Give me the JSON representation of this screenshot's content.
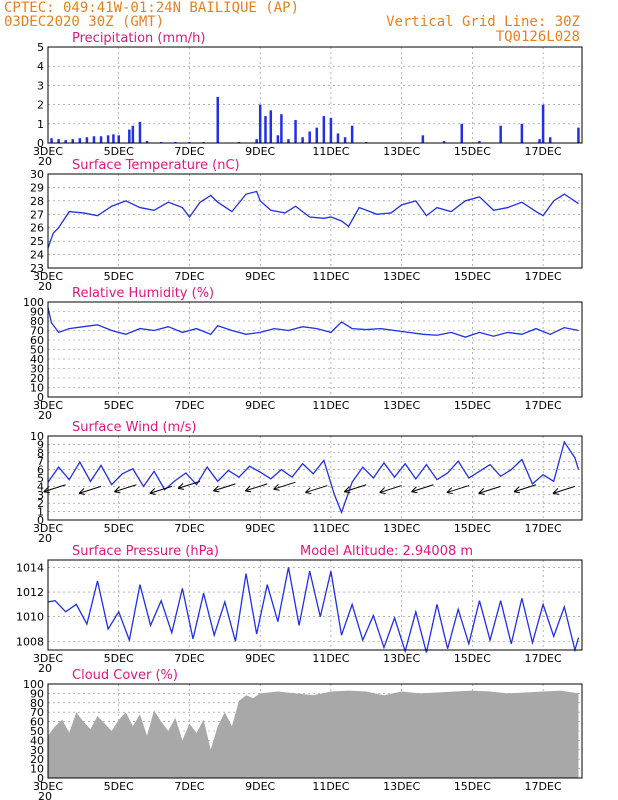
{
  "header": {
    "source": "CPTEC:",
    "coords": "049:41W-01:24N",
    "station": "BAILIQUE (AP)",
    "run": "03DEC2020 30Z (GMT)",
    "grid_note": "Vertical Grid Line: 30Z",
    "code": "TQ0126L028",
    "model_altitude": "Model Altitude: 2.94008 m"
  },
  "colors": {
    "header": "#e8801e",
    "title": "#e0187c",
    "series": "#2030e8",
    "cloud": "#a8a8a8"
  },
  "x_ticks": [
    "3DEC",
    "5DEC",
    "7DEC",
    "9DEC",
    "11DEC",
    "13DEC",
    "15DEC",
    "17DEC"
  ],
  "x_tick_sub": "20",
  "chart_data": [
    {
      "type": "bar",
      "title": "Precipitation (mm/h)",
      "ylim": [
        0,
        5
      ],
      "yticks": [
        0,
        1,
        2,
        3,
        4,
        5
      ],
      "x_range_days": [
        3,
        18.1
      ],
      "bars": [
        [
          3.1,
          0.25
        ],
        [
          3.3,
          0.2
        ],
        [
          3.5,
          0.15
        ],
        [
          3.7,
          0.2
        ],
        [
          3.9,
          0.25
        ],
        [
          4.1,
          0.3
        ],
        [
          4.3,
          0.35
        ],
        [
          4.5,
          0.35
        ],
        [
          4.7,
          0.4
        ],
        [
          4.85,
          0.45
        ],
        [
          5.0,
          0.4
        ],
        [
          5.3,
          0.7
        ],
        [
          5.4,
          0.9
        ],
        [
          5.6,
          1.1
        ],
        [
          5.8,
          0.1
        ],
        [
          6.2,
          0.05
        ],
        [
          6.6,
          0.05
        ],
        [
          7.0,
          0.05
        ],
        [
          7.4,
          0.05
        ],
        [
          7.8,
          2.4
        ],
        [
          8.4,
          0.05
        ],
        [
          8.9,
          0.2
        ],
        [
          9.0,
          2.0
        ],
        [
          9.15,
          1.4
        ],
        [
          9.3,
          1.7
        ],
        [
          9.5,
          0.4
        ],
        [
          9.6,
          1.5
        ],
        [
          9.8,
          0.2
        ],
        [
          10.0,
          1.2
        ],
        [
          10.2,
          0.3
        ],
        [
          10.4,
          0.6
        ],
        [
          10.6,
          0.8
        ],
        [
          10.8,
          1.4
        ],
        [
          11.0,
          1.3
        ],
        [
          11.2,
          0.5
        ],
        [
          11.4,
          0.3
        ],
        [
          11.6,
          0.9
        ],
        [
          12.0,
          0.05
        ],
        [
          13.6,
          0.4
        ],
        [
          14.2,
          0.1
        ],
        [
          14.7,
          1.0
        ],
        [
          15.2,
          0.1
        ],
        [
          15.8,
          0.9
        ],
        [
          16.4,
          1.0
        ],
        [
          16.9,
          0.2
        ],
        [
          17.0,
          2.0
        ],
        [
          17.2,
          0.3
        ],
        [
          18.0,
          0.8
        ]
      ]
    },
    {
      "type": "line",
      "title": "Surface Temperature (nC)",
      "ylim": [
        23,
        30
      ],
      "yticks": [
        23,
        24,
        25,
        26,
        27,
        28,
        29,
        30
      ],
      "x": [
        3,
        3.15,
        3.3,
        3.45,
        3.6,
        4.0,
        4.4,
        4.8,
        5.2,
        5.6,
        6.0,
        6.4,
        6.8,
        7.0,
        7.3,
        7.6,
        7.8,
        8.2,
        8.6,
        8.9,
        9.0,
        9.3,
        9.7,
        10.0,
        10.4,
        10.8,
        11.0,
        11.3,
        11.5,
        11.8,
        12.3,
        12.7,
        13.0,
        13.4,
        13.7,
        14.0,
        14.4,
        14.8,
        15.2,
        15.6,
        16.0,
        16.4,
        16.8,
        17.0,
        17.3,
        17.6,
        18.0
      ],
      "y": [
        24.5,
        25.6,
        26.0,
        26.6,
        27.2,
        27.1,
        26.9,
        27.6,
        28.0,
        27.5,
        27.3,
        27.9,
        27.5,
        26.8,
        27.9,
        28.4,
        27.9,
        27.2,
        28.5,
        28.7,
        28.0,
        27.3,
        27.1,
        27.6,
        26.8,
        26.7,
        26.8,
        26.5,
        26.1,
        27.5,
        27.0,
        27.1,
        27.7,
        28.0,
        26.9,
        27.5,
        27.2,
        28.0,
        28.3,
        27.3,
        27.5,
        27.9,
        27.2,
        26.9,
        28.0,
        28.5,
        27.8
      ]
    },
    {
      "type": "line",
      "title": "Relative Humidity (%)",
      "ylim": [
        0,
        100
      ],
      "yticks": [
        0,
        10,
        20,
        30,
        40,
        50,
        60,
        70,
        80,
        90,
        100
      ],
      "x": [
        3,
        3.1,
        3.3,
        3.6,
        4.0,
        4.4,
        4.8,
        5.2,
        5.6,
        6.0,
        6.4,
        6.8,
        7.2,
        7.6,
        7.8,
        8.2,
        8.6,
        9.0,
        9.4,
        9.8,
        10.2,
        10.6,
        11.0,
        11.3,
        11.6,
        12.0,
        12.4,
        12.8,
        13.2,
        13.6,
        14.0,
        14.4,
        14.8,
        15.2,
        15.6,
        16.0,
        16.4,
        16.8,
        17.2,
        17.6,
        18.0
      ],
      "y": [
        94,
        78,
        68,
        72,
        74,
        76,
        70,
        66,
        72,
        70,
        74,
        68,
        72,
        66,
        75,
        70,
        66,
        68,
        72,
        70,
        74,
        72,
        68,
        79,
        72,
        71,
        72,
        70,
        68,
        66,
        65,
        68,
        63,
        68,
        64,
        68,
        66,
        72,
        66,
        73,
        70
      ]
    },
    {
      "type": "line",
      "title": "Surface Wind (m/s)",
      "ylim": [
        0,
        10
      ],
      "yticks": [
        0,
        1,
        2,
        3,
        4,
        5,
        6,
        7,
        8,
        9,
        10
      ],
      "x": [
        3,
        3.3,
        3.6,
        3.9,
        4.2,
        4.5,
        4.8,
        5.1,
        5.4,
        5.7,
        6.0,
        6.3,
        6.6,
        6.9,
        7.2,
        7.5,
        7.8,
        8.1,
        8.4,
        8.7,
        9.0,
        9.3,
        9.6,
        9.9,
        10.2,
        10.5,
        10.8,
        11.1,
        11.3,
        11.6,
        11.9,
        12.2,
        12.5,
        12.8,
        13.1,
        13.4,
        13.7,
        14.0,
        14.3,
        14.6,
        14.9,
        15.2,
        15.5,
        15.8,
        16.1,
        16.4,
        16.7,
        17.0,
        17.3,
        17.6,
        17.9,
        18.0
      ],
      "y": [
        4.5,
        6.3,
        4.8,
        6.9,
        4.6,
        6.5,
        4.2,
        5.5,
        6.1,
        4.0,
        5.8,
        3.6,
        4.7,
        5.6,
        4.2,
        6.3,
        4.6,
        5.9,
        5.1,
        6.4,
        5.7,
        4.9,
        6.0,
        5.1,
        6.7,
        5.5,
        7.1,
        3.0,
        0.9,
        4.5,
        6.3,
        5.0,
        6.8,
        5.1,
        6.7,
        4.9,
        6.6,
        4.8,
        5.6,
        7.0,
        5.0,
        5.8,
        6.6,
        5.2,
        6.0,
        7.2,
        4.3,
        5.4,
        4.6,
        9.3,
        7.4,
        6.0
      ],
      "arrows": [
        [
          3.5,
          4.2
        ],
        [
          4.5,
          4.0
        ],
        [
          5.5,
          4.2
        ],
        [
          6.5,
          4.0
        ],
        [
          7.3,
          4.6
        ],
        [
          8.3,
          4.3
        ],
        [
          9.2,
          4.3
        ],
        [
          10.0,
          4.5
        ],
        [
          10.9,
          4.1
        ],
        [
          12.0,
          4.2
        ],
        [
          13.0,
          4.1
        ],
        [
          13.9,
          4.2
        ],
        [
          14.9,
          4.1
        ],
        [
          15.8,
          4.0
        ],
        [
          16.8,
          4.2
        ],
        [
          17.9,
          4.0
        ]
      ]
    },
    {
      "type": "line",
      "title": "Surface Pressure (hPa)",
      "ylim": [
        1007.3,
        1014.6
      ],
      "yticks": [
        1008,
        1010,
        1012,
        1014
      ],
      "x": [
        3,
        3.2,
        3.5,
        3.8,
        4.1,
        4.4,
        4.7,
        5.0,
        5.3,
        5.6,
        5.9,
        6.2,
        6.5,
        6.8,
        7.1,
        7.4,
        7.7,
        8.0,
        8.3,
        8.6,
        8.9,
        9.2,
        9.5,
        9.8,
        10.1,
        10.4,
        10.7,
        11.0,
        11.3,
        11.6,
        11.9,
        12.2,
        12.5,
        12.8,
        13.1,
        13.4,
        13.7,
        14.0,
        14.3,
        14.6,
        14.9,
        15.2,
        15.5,
        15.8,
        16.1,
        16.4,
        16.7,
        17.0,
        17.3,
        17.6,
        17.9,
        18.0
      ],
      "y": [
        1011.2,
        1011.3,
        1010.4,
        1011.0,
        1009.4,
        1012.9,
        1009.0,
        1010.4,
        1008.1,
        1012.6,
        1009.3,
        1011.3,
        1008.7,
        1012.3,
        1008.2,
        1011.9,
        1008.5,
        1011.2,
        1008.0,
        1013.5,
        1008.6,
        1012.6,
        1009.6,
        1014.0,
        1009.3,
        1013.7,
        1010.0,
        1013.7,
        1008.5,
        1011.0,
        1008.1,
        1010.1,
        1007.5,
        1009.9,
        1007.2,
        1010.4,
        1007.1,
        1011.0,
        1007.4,
        1010.6,
        1007.8,
        1011.3,
        1008.1,
        1011.3,
        1007.8,
        1011.5,
        1007.9,
        1011.0,
        1008.4,
        1010.8,
        1007.3,
        1008.3
      ]
    },
    {
      "type": "area",
      "title": "Cloud Cover (%)",
      "ylim": [
        0,
        100
      ],
      "yticks": [
        0,
        10,
        20,
        30,
        40,
        50,
        60,
        70,
        80,
        90,
        100
      ],
      "x": [
        3,
        3.2,
        3.4,
        3.6,
        3.8,
        4.0,
        4.2,
        4.4,
        4.6,
        4.8,
        5.0,
        5.2,
        5.4,
        5.6,
        5.8,
        6.0,
        6.2,
        6.4,
        6.6,
        6.8,
        7.0,
        7.2,
        7.4,
        7.6,
        7.8,
        8.0,
        8.2,
        8.4,
        8.6,
        8.8,
        9.0,
        9.5,
        10.0,
        10.5,
        11.0,
        11.5,
        12.0,
        12.5,
        13.0,
        13.5,
        14.0,
        14.5,
        15.0,
        15.5,
        16.0,
        16.5,
        17.0,
        17.5,
        18.0
      ],
      "y": [
        45,
        55,
        62,
        48,
        70,
        60,
        52,
        66,
        58,
        50,
        62,
        70,
        55,
        68,
        45,
        72,
        60,
        50,
        64,
        40,
        58,
        48,
        62,
        30,
        55,
        70,
        55,
        82,
        88,
        85,
        90,
        92,
        90,
        88,
        92,
        93,
        92,
        88,
        92,
        90,
        91,
        92,
        93,
        92,
        90,
        91,
        92,
        93,
        90
      ]
    }
  ]
}
